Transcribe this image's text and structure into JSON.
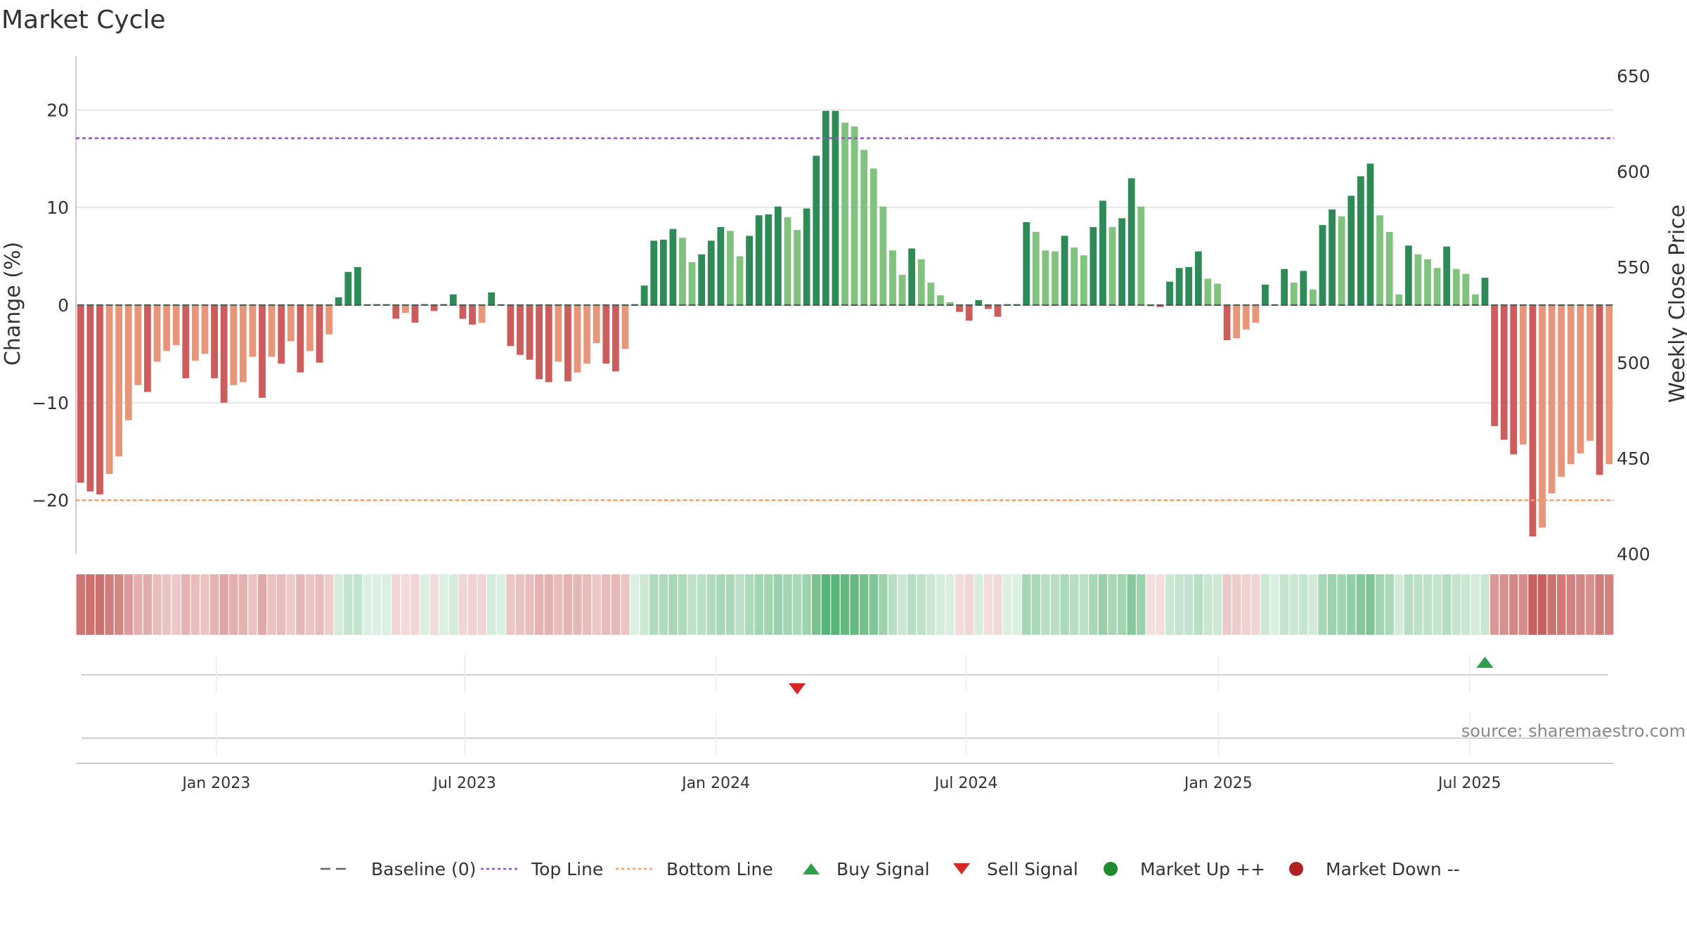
{
  "title": "Market Cycle",
  "source": "source: sharemaestro.com",
  "legend": {
    "items": [
      {
        "label": "Baseline (0)",
        "symbol": "dash",
        "color": "#666666"
      },
      {
        "label": "Top Line",
        "symbol": "dot-line",
        "color": "#9b4dca"
      },
      {
        "label": "Bottom Line",
        "symbol": "dot-line",
        "color": "#f0a060"
      },
      {
        "label": "Buy Signal",
        "symbol": "triangle-up",
        "color": "#2e9e4f"
      },
      {
        "label": "Sell Signal",
        "symbol": "triangle-down",
        "color": "#d62728"
      },
      {
        "label": "Market Up ++",
        "symbol": "circle",
        "color": "#1f8a2e"
      },
      {
        "label": "Market Down --",
        "symbol": "circle",
        "color": "#b22222"
      }
    ]
  },
  "chart_data": {
    "type": "bar",
    "ylabel": "Change (%)",
    "y2label": "Weekly Close Price",
    "ylim": [
      -25.5,
      25.5
    ],
    "y2lim": [
      400,
      650
    ],
    "yticks": [
      -20,
      -10,
      0,
      10,
      20
    ],
    "yticklabels": [
      "−20",
      "−10",
      "0",
      "10",
      "20"
    ],
    "y2ticks": [
      400,
      450,
      500,
      550,
      600,
      650
    ],
    "top_line": 17.1,
    "bottom_line": -20.0,
    "baseline": 0,
    "grid": true,
    "date_ticks": [
      "Jan 2023",
      "Jul 2023",
      "Jan 2024",
      "Jul 2024",
      "Jan 2025",
      "Jul 2025"
    ],
    "date_tick_index": [
      14.7,
      40.7,
      67.0,
      93.2,
      119.6,
      145.9
    ],
    "colors": {
      "strong_down": "#cd5c5c",
      "weak_down": "#e8967a",
      "strong_up": "#2e8b57",
      "weak_up": "#82c27f",
      "heat_down": "#c0504d",
      "heat_up": "#3aa55c",
      "top_line": "#9b4dca",
      "bottom_line": "#f0a060"
    },
    "values": [
      -18.2,
      -19.1,
      -19.4,
      -17.3,
      -15.5,
      -11.8,
      -8.2,
      -8.9,
      -5.8,
      -4.7,
      -4.1,
      -7.5,
      -5.7,
      -5.0,
      -7.5,
      -10.0,
      -8.2,
      -7.9,
      -5.3,
      -9.5,
      -5.3,
      -6.0,
      -3.7,
      -6.9,
      -4.7,
      -5.9,
      -3.0,
      0.8,
      3.4,
      3.9,
      0.1,
      0.1,
      0.1,
      -1.4,
      -0.8,
      -1.8,
      0.1,
      -0.6,
      0.1,
      1.1,
      -1.4,
      -2.0,
      -1.8,
      1.3,
      0.1,
      -4.2,
      -5.1,
      -5.6,
      -7.6,
      -7.9,
      -5.8,
      -7.8,
      -6.9,
      -6.0,
      -3.9,
      -6.0,
      -6.8,
      -4.5,
      0.1,
      2.0,
      6.6,
      6.7,
      7.8,
      6.9,
      4.4,
      5.2,
      6.6,
      8.0,
      7.6,
      5.0,
      7.1,
      9.2,
      9.3,
      10.1,
      9.0,
      7.7,
      9.9,
      15.3,
      19.9,
      19.9,
      18.7,
      18.3,
      15.9,
      14.0,
      10.1,
      5.6,
      3.1,
      5.8,
      4.7,
      2.3,
      1.0,
      0.3,
      -0.7,
      -1.6,
      0.5,
      -0.4,
      -1.2,
      0.1,
      0.1,
      8.5,
      7.5,
      5.6,
      5.5,
      7.1,
      5.9,
      5.1,
      8.0,
      10.7,
      8.0,
      8.9,
      13.0,
      10.1,
      -0.1,
      -0.2,
      2.4,
      3.8,
      3.9,
      5.5,
      2.7,
      2.2,
      -3.6,
      -3.4,
      -2.5,
      -1.8,
      2.1,
      0.1,
      3.7,
      2.3,
      3.5,
      1.6,
      8.2,
      9.8,
      9.1,
      11.2,
      13.2,
      14.5,
      9.2,
      7.5,
      1.1,
      6.1,
      5.2,
      4.7,
      3.8,
      6.0,
      3.7,
      3.2,
      1.1,
      2.8,
      -12.4,
      -13.8,
      -15.3,
      -14.3,
      -23.7,
      -22.8,
      -19.3,
      -17.6,
      -16.3,
      -15.2,
      -13.9,
      -17.4,
      -16.3
    ],
    "buy_signals": [
      147
    ],
    "sell_signals": [
      75
    ]
  }
}
